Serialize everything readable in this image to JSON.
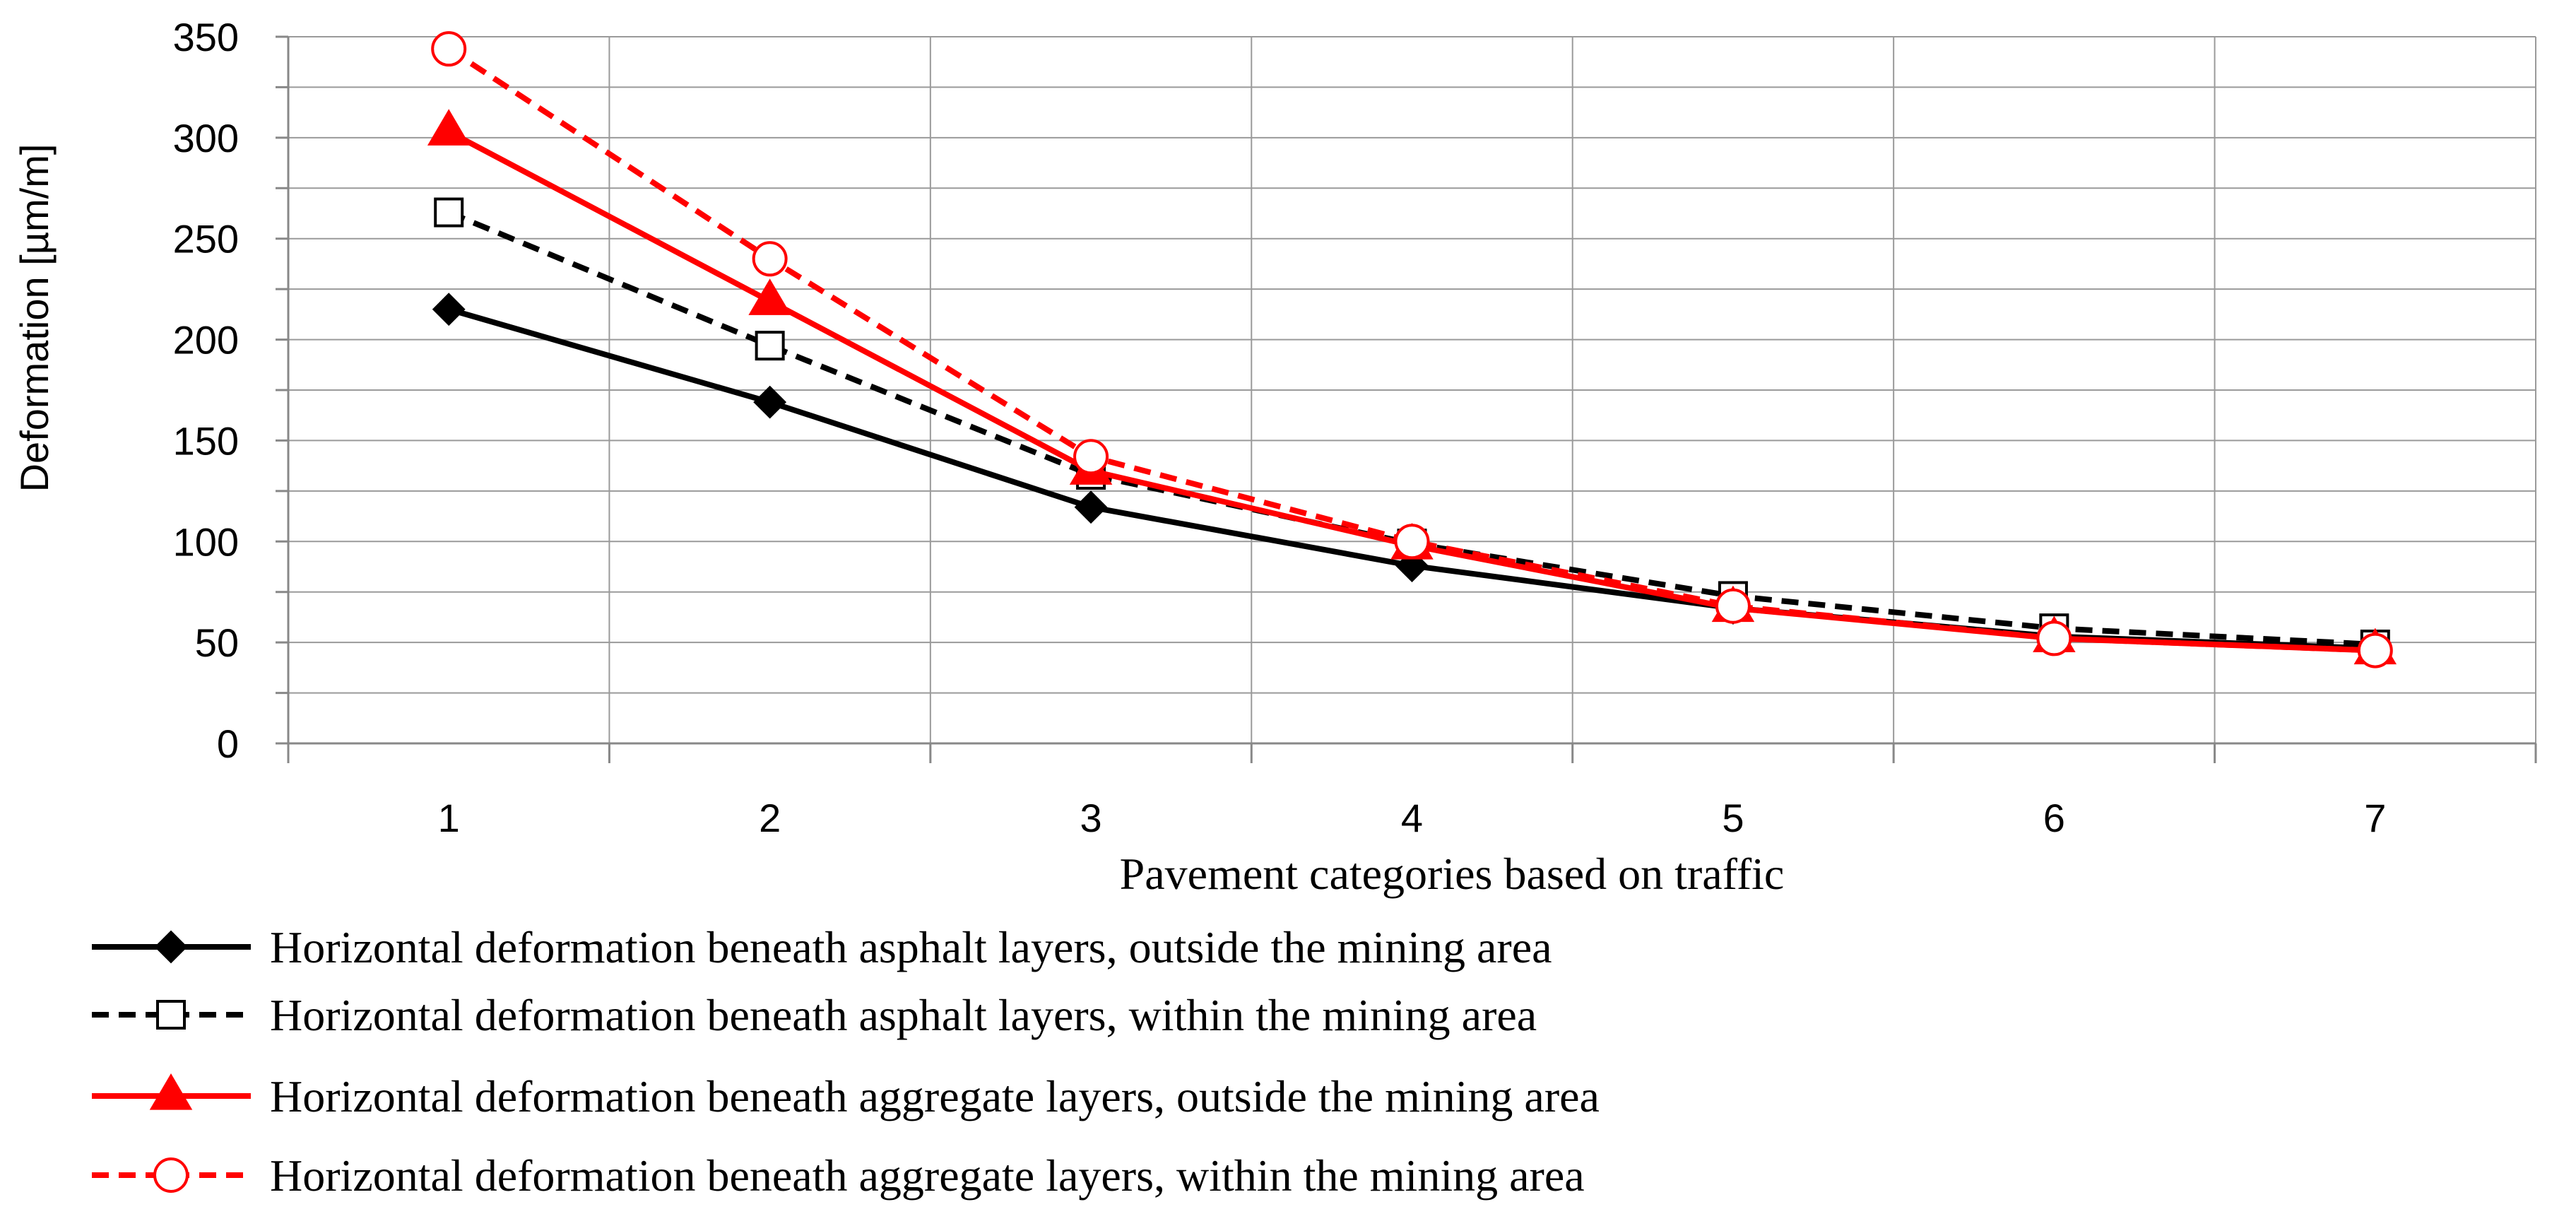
{
  "chart_data": {
    "type": "line",
    "title": "",
    "xlabel": "Pavement categories based on traffic",
    "ylabel": "Deformation [µm/m]",
    "x": [
      1,
      2,
      3,
      4,
      5,
      6,
      7
    ],
    "x_tick_labels": [
      "1",
      "2",
      "3",
      "4",
      "5",
      "6",
      "7"
    ],
    "xlim": [
      0.5,
      7.5
    ],
    "ylim": [
      0,
      350
    ],
    "y_ticks": [
      0,
      50,
      100,
      150,
      200,
      250,
      300,
      350
    ],
    "y_tick_labels": [
      "0",
      "50",
      "100",
      "150",
      "200",
      "250",
      "300",
      "350"
    ],
    "y_minor_step": 25,
    "grid": true,
    "legend_position": "bottom",
    "series": [
      {
        "name": "Horizontal deformation beneath asphalt layers, outside the mining area",
        "values": [
          215,
          169,
          117,
          88,
          67,
          53,
          47
        ],
        "color": "#000000",
        "line_style": "solid",
        "marker": "diamond"
      },
      {
        "name": "Horizontal deformation beneath asphalt layers, within the mining area",
        "values": [
          263,
          197,
          133,
          99,
          73,
          57,
          49
        ],
        "color": "#000000",
        "line_style": "dashed",
        "marker": "open-square"
      },
      {
        "name": "Horizontal deformation beneath aggregate layers, outside the mining area",
        "values": [
          303,
          219,
          135,
          98,
          67,
          52,
          46
        ],
        "color": "#ff0000",
        "line_style": "solid",
        "marker": "triangle"
      },
      {
        "name": "Horizontal deformation beneath aggregate layers, within the mining area",
        "values": [
          344,
          240,
          142,
          100,
          68,
          52,
          46
        ],
        "color": "#ff0000",
        "line_style": "dashed",
        "marker": "open-circle"
      }
    ]
  }
}
